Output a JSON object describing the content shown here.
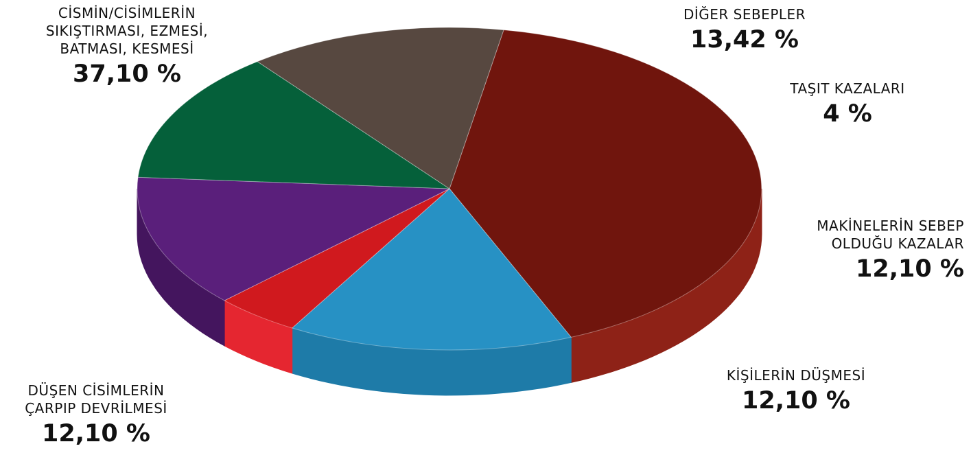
{
  "chart_data": {
    "type": "pie",
    "title": "",
    "slices": [
      {
        "label": "CİSMİN/CİSİMLERİN\nSIKIŞTIRMASI, EZMESİ,\nBATMASI, KESMESİ",
        "value": 37.1,
        "display": "37,10 %",
        "color": "#70150D",
        "side_color": "#8E2217"
      },
      {
        "label": "DİĞER SEBEPLER",
        "value": 13.42,
        "display": "13,42 %",
        "color": "#2791C4",
        "side_color": "#1E7BA8"
      },
      {
        "label": "TAŞIT KAZALARI",
        "value": 4,
        "display": "4 %",
        "color": "#D0191E",
        "side_color": "#E52630"
      },
      {
        "label": "MAKİNELERİN SEBEP\nOLDUĞU KAZALAR",
        "value": 12.1,
        "display": "12,10 %",
        "color": "#5A1F7B",
        "side_color": "#44155E"
      },
      {
        "label": "KİŞİLERİN DÜŞMESİ",
        "value": 12.1,
        "display": "12,10 %",
        "color": "#05603A",
        "side_color": "#07492E"
      },
      {
        "label": "DÜŞEN CİSİMLERİN\nÇARPIP DEVRİLMESİ",
        "value": 12.1,
        "display": "12,10 %",
        "color": "#574840",
        "side_color": "#6B5A50"
      }
    ]
  }
}
